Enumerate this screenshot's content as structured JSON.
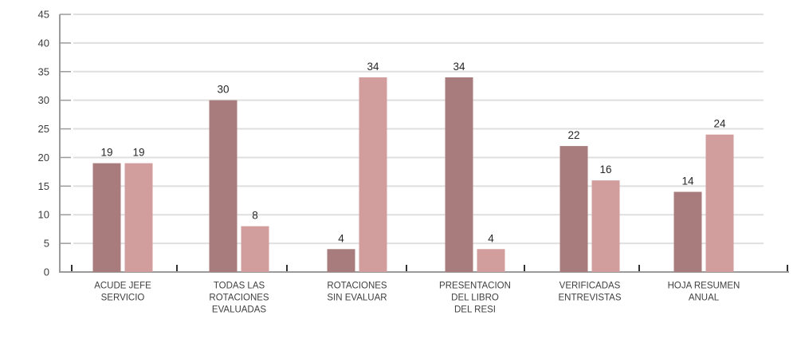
{
  "chart_data": {
    "type": "bar",
    "title": "",
    "subtitle": "",
    "legend": "none",
    "grid": true,
    "value_labels_shown": true,
    "categories": [
      {
        "label": "ACUDE JEFE SERVICIO",
        "lines": [
          "ACUDE JEFE",
          "SERVICIO"
        ]
      },
      {
        "label": "TODAS LAS ROTACIONES EVALUADAS",
        "lines": [
          "TODAS LAS",
          "ROTACIONES",
          "EVALUADAS"
        ]
      },
      {
        "label": "ROTACIONES SIN EVALUAR",
        "lines": [
          "ROTACIONES",
          "SIN EVALUAR"
        ]
      },
      {
        "label": "PRESENTACION DEL LIBRO DEL RESI",
        "lines": [
          "PRESENTACION",
          "DEL LIBRO",
          "DEL RESI"
        ]
      },
      {
        "label": "VERIFICADAS ENTREVISTAS",
        "lines": [
          "VERIFICADAS",
          "ENTREVISTAS"
        ]
      },
      {
        "label": "HOJA RESUMEN ANUAL",
        "lines": [
          "HOJA RESUMEN",
          "ANUAL"
        ]
      }
    ],
    "series": [
      {
        "name": "series_1",
        "color": "#A87C7C",
        "values": [
          19,
          30,
          4,
          34,
          22,
          14
        ]
      },
      {
        "name": "series_2",
        "color": "#D29D9D",
        "values": [
          19,
          8,
          34,
          4,
          16,
          24
        ]
      }
    ],
    "y_axis": {
      "min": 0,
      "max": 45,
      "step": 5,
      "tick_labels": [
        "0",
        "5",
        "10",
        "15",
        "20",
        "25",
        "30",
        "35",
        "40",
        "45"
      ]
    },
    "xlabel": "",
    "ylabel": ""
  },
  "colors": {
    "background": "#FFFFFF",
    "bar_dark": "#A87C7C",
    "bar_light": "#D29D9D",
    "gridline": "#DFDFDF",
    "axis": "#9B9B9B",
    "x_tick": "#333333",
    "value_label_text": "#262626",
    "axis_label_text": "#3D3D3D",
    "category_label_text": "#404040"
  }
}
